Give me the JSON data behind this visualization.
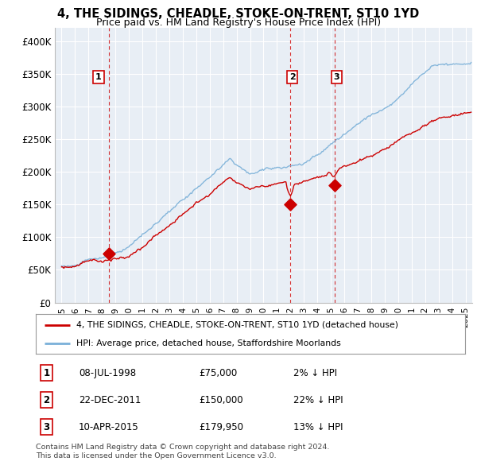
{
  "title": "4, THE SIDINGS, CHEADLE, STOKE-ON-TRENT, ST10 1YD",
  "subtitle": "Price paid vs. HM Land Registry's House Price Index (HPI)",
  "ylabel_ticks": [
    "£0",
    "£50K",
    "£100K",
    "£150K",
    "£200K",
    "£250K",
    "£300K",
    "£350K",
    "£400K"
  ],
  "ytick_values": [
    0,
    50000,
    100000,
    150000,
    200000,
    250000,
    300000,
    350000,
    400000
  ],
  "ylim": [
    0,
    420000
  ],
  "xlim_start": 1994.5,
  "xlim_end": 2025.5,
  "sale_dates": [
    1998.54,
    2011.98,
    2015.28
  ],
  "sale_prices": [
    75000,
    150000,
    179950
  ],
  "sale_labels": [
    "1",
    "2",
    "3"
  ],
  "hpi_color": "#7ab0d8",
  "sale_line_color": "#cc0000",
  "sale_dot_color": "#cc0000",
  "plot_bg_color": "#e8eef5",
  "background_color": "#ffffff",
  "grid_color": "#ffffff",
  "legend_entry1": "4, THE SIDINGS, CHEADLE, STOKE-ON-TRENT, ST10 1YD (detached house)",
  "legend_entry2": "HPI: Average price, detached house, Staffordshire Moorlands",
  "table_rows": [
    {
      "label": "1",
      "date": "08-JUL-1998",
      "price": "£75,000",
      "hpi": "2% ↓ HPI"
    },
    {
      "label": "2",
      "date": "22-DEC-2011",
      "price": "£150,000",
      "hpi": "22% ↓ HPI"
    },
    {
      "label": "3",
      "date": "10-APR-2015",
      "price": "£179,950",
      "hpi": "13% ↓ HPI"
    }
  ],
  "footer_line1": "Contains HM Land Registry data © Crown copyright and database right 2024.",
  "footer_line2": "This data is licensed under the Open Government Licence v3.0.",
  "dashed_vline_color": "#cc0000",
  "label_box_color": "#cc0000"
}
